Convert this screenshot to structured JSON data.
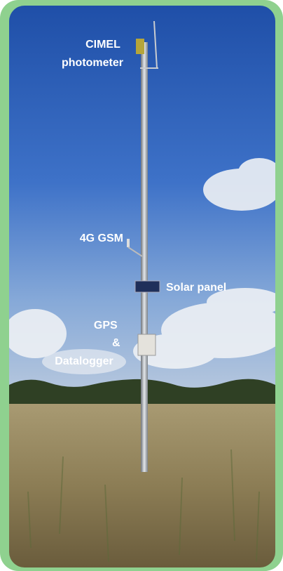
{
  "labels": [
    {
      "lines": [
        "CIMEL",
        "photometer"
      ]
    },
    {
      "lines": [
        "4G GSM"
      ]
    },
    {
      "lines": [
        "Solar panel"
      ]
    },
    {
      "lines": [
        "GPS",
        "&",
        "Datalogger"
      ]
    }
  ]
}
